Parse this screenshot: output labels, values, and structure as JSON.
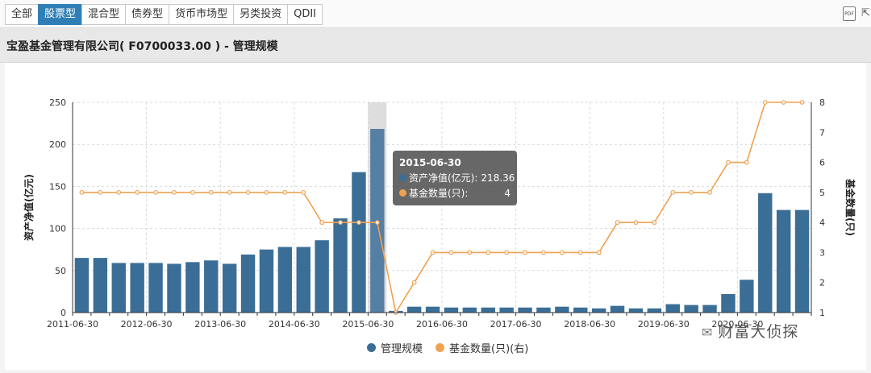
{
  "tabs": [
    {
      "label": "全部",
      "active": false
    },
    {
      "label": "股票型",
      "active": true
    },
    {
      "label": "混合型",
      "active": false
    },
    {
      "label": "债券型",
      "active": false
    },
    {
      "label": "货币市场型",
      "active": false
    },
    {
      "label": "另类投资",
      "active": false
    },
    {
      "label": "QDII",
      "active": false
    }
  ],
  "toolbar": {
    "pdf_label": "PDF",
    "pdf_icon": "pdf-icon",
    "corner_icon": "share-icon",
    "corner_glyph": "⇱"
  },
  "page_title": "宝盈基金管理有限公司( F0700033.00 ) - 管理规模",
  "colors": {
    "bar": "#3a6e96",
    "bar_highlight": "#557fa3",
    "line": "#f0a251",
    "grid": "#d9d9d9",
    "axis_band": "#d4d4d4"
  },
  "tooltip": {
    "date": "2015-06-30",
    "rows": [
      {
        "label": "资产净值(亿元):",
        "value": "218.36",
        "color": "#3a6e96"
      },
      {
        "label": "基金数量(只):",
        "value": "4",
        "color": "#f0a251"
      }
    ]
  },
  "watermark": {
    "text": "财富大侦探",
    "icon": "wechat-icon",
    "glyph": "✉"
  },
  "chart_data": {
    "type": "bar",
    "title": "",
    "x": [
      "2011-06-30",
      "2011-09-30",
      "2011-12-31",
      "2012-03-31",
      "2012-06-30",
      "2012-09-30",
      "2012-12-31",
      "2013-03-31",
      "2013-06-30",
      "2013-09-30",
      "2013-12-31",
      "2014-03-31",
      "2014-06-30",
      "2014-09-30",
      "2014-12-31",
      "2015-03-31",
      "2015-06-30",
      "2015-09-30",
      "2015-12-31",
      "2016-03-31",
      "2016-06-30",
      "2016-09-30",
      "2016-12-31",
      "2017-03-31",
      "2017-06-30",
      "2017-09-30",
      "2017-12-31",
      "2018-03-31",
      "2018-06-30",
      "2018-09-30",
      "2018-12-31",
      "2019-03-31",
      "2019-06-30",
      "2019-09-30",
      "2019-12-31",
      "2020-03-31",
      "2020-06-30",
      "2020-09-30",
      "2020-12-31",
      "2021-03-31"
    ],
    "x_tick_labels": [
      "2011-06-30",
      "2012-06-30",
      "2013-06-30",
      "2014-06-30",
      "2015-06-30",
      "2016-06-30",
      "2017-06-30",
      "2018-06-30",
      "2019-06-30",
      "2020-06-30"
    ],
    "x_tick_every": 4,
    "highlight_index": 16,
    "series": [
      {
        "name": "管理规模",
        "type": "bar",
        "axis": "left",
        "values": [
          65,
          65,
          59,
          59,
          59,
          58,
          60,
          62,
          58,
          69,
          75,
          78,
          78,
          86,
          112,
          167,
          218.36,
          2,
          7,
          7,
          6,
          6,
          6,
          6,
          6,
          6,
          7,
          6,
          5,
          8,
          5,
          5,
          10,
          9,
          9,
          22,
          39,
          142,
          122,
          122
        ]
      },
      {
        "name": "基金数量(只)(右)",
        "type": "line",
        "axis": "right",
        "values": [
          5,
          5,
          5,
          5,
          5,
          5,
          5,
          5,
          5,
          5,
          5,
          5,
          5,
          4,
          4,
          4,
          4,
          1,
          2,
          3,
          3,
          3,
          3,
          3,
          3,
          3,
          3,
          3,
          3,
          4,
          4,
          4,
          5,
          5,
          5,
          6,
          6,
          8,
          8,
          8
        ]
      }
    ],
    "ylabel": "资产净值(亿元)",
    "ylabel_right": "基金数量(只)",
    "ylim": [
      0,
      250
    ],
    "yticks": [
      0,
      50,
      100,
      150,
      200,
      250
    ],
    "ylim_right": [
      1,
      8
    ],
    "yticks_right": [
      1,
      2,
      3,
      4,
      5,
      6,
      7,
      8
    ],
    "grid": true,
    "legend": "bottom-center"
  }
}
